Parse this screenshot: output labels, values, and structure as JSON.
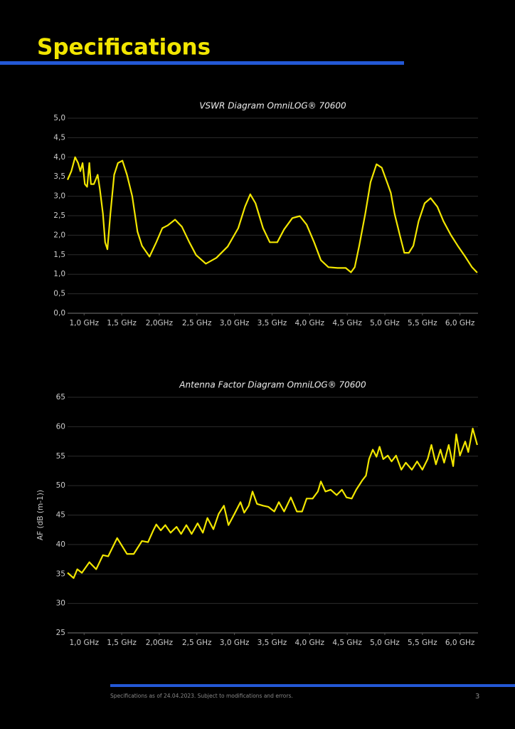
{
  "page": {
    "title": "Specifications",
    "footer": "Specifications as of 24.04.2023.  Subject to modifications and errors.",
    "page_number": "3"
  },
  "chart_data": [
    {
      "type": "line",
      "title": "VSWR Diagram OmniLOG® 70600",
      "color": "#f2e600",
      "grid": true,
      "xlim": [
        0.78,
        6.24
      ],
      "ylim": [
        0,
        5
      ],
      "xticks": [
        {
          "value": 1.0,
          "label": "1,0 GHz"
        },
        {
          "value": 1.5,
          "label": "1,5 GHz"
        },
        {
          "value": 2.0,
          "label": "2,0GHz"
        },
        {
          "value": 2.5,
          "label": "2,5 GHz"
        },
        {
          "value": 3.0,
          "label": "3,0 GHz"
        },
        {
          "value": 3.5,
          "label": "3,5 GHz"
        },
        {
          "value": 4.0,
          "label": "4,0 GHz"
        },
        {
          "value": 4.5,
          "label": "4,5 GHz"
        },
        {
          "value": 5.0,
          "label": "5,0 GHz"
        },
        {
          "value": 5.5,
          "label": "5,5 GHz"
        },
        {
          "value": 6.0,
          "label": "6,0 GHz"
        }
      ],
      "yticks": [
        {
          "value": 0,
          "label": "0,0"
        },
        {
          "value": 0.5,
          "label": "0,5"
        },
        {
          "value": 1,
          "label": "1,0"
        },
        {
          "value": 1.5,
          "label": "1,5"
        },
        {
          "value": 2,
          "label": "2,0"
        },
        {
          "value": 2.5,
          "label": "2,5"
        },
        {
          "value": 3,
          "label": "3,0"
        },
        {
          "value": 3.5,
          "label": "3,5"
        },
        {
          "value": 4,
          "label": "4,0"
        },
        {
          "value": 4.5,
          "label": "4,5"
        },
        {
          "value": 5,
          "label": "5,0"
        }
      ],
      "x": [
        0.78,
        0.83,
        0.88,
        0.92,
        0.95,
        0.98,
        1.01,
        1.04,
        1.07,
        1.09,
        1.13,
        1.18,
        1.21,
        1.25,
        1.28,
        1.31,
        1.35,
        1.4,
        1.45,
        1.51,
        1.57,
        1.64,
        1.71,
        1.77,
        1.87,
        1.96,
        2.04,
        2.11,
        2.21,
        2.3,
        2.4,
        2.49,
        2.62,
        2.76,
        2.91,
        3.05,
        3.14,
        3.21,
        3.28,
        3.38,
        3.47,
        3.57,
        3.66,
        3.77,
        3.87,
        3.96,
        4.06,
        4.15,
        4.25,
        4.37,
        4.48,
        4.55,
        4.6,
        4.66,
        4.74,
        4.81,
        4.89,
        4.96,
        5.03,
        5.08,
        5.13,
        5.2,
        5.26,
        5.32,
        5.38,
        5.45,
        5.53,
        5.61,
        5.7,
        5.78,
        5.88,
        5.97,
        6.07,
        6.16,
        6.23
      ],
      "values": [
        3.42,
        3.64,
        4.0,
        3.85,
        3.64,
        3.85,
        3.31,
        3.24,
        3.85,
        3.31,
        3.31,
        3.55,
        3.18,
        2.55,
        1.82,
        1.64,
        2.55,
        3.55,
        3.85,
        3.91,
        3.55,
        3.0,
        2.09,
        1.73,
        1.45,
        1.82,
        2.18,
        2.25,
        2.4,
        2.22,
        1.82,
        1.49,
        1.27,
        1.42,
        1.71,
        2.18,
        2.73,
        3.05,
        2.82,
        2.18,
        1.82,
        1.82,
        2.15,
        2.44,
        2.49,
        2.27,
        1.82,
        1.36,
        1.18,
        1.16,
        1.16,
        1.05,
        1.18,
        1.73,
        2.55,
        3.36,
        3.82,
        3.73,
        3.36,
        3.09,
        2.55,
        2.0,
        1.55,
        1.55,
        1.73,
        2.36,
        2.82,
        2.95,
        2.73,
        2.36,
        2.0,
        1.73,
        1.45,
        1.18,
        1.04
      ]
    },
    {
      "type": "line",
      "title": "Antenna Factor Diagram OmniLOG® 70600",
      "ylabel": "AF (dB (m-1))",
      "color": "#f2e600",
      "grid": true,
      "xlim": [
        0.78,
        6.24
      ],
      "ylim": [
        25,
        65
      ],
      "xticks": [
        {
          "value": 1.0,
          "label": "1,0 GHz"
        },
        {
          "value": 1.5,
          "label": "1,5 GHz"
        },
        {
          "value": 2.0,
          "label": "2,0GHz"
        },
        {
          "value": 2.5,
          "label": "2,5 GHz"
        },
        {
          "value": 3.0,
          "label": "3,0 GHz"
        },
        {
          "value": 3.5,
          "label": "3,5 GHz"
        },
        {
          "value": 4.0,
          "label": "4,0 GHz"
        },
        {
          "value": 4.5,
          "label": "4,5 GHz"
        },
        {
          "value": 5.0,
          "label": "5,0 GHz"
        },
        {
          "value": 5.5,
          "label": "5,5 GHz"
        },
        {
          "value": 6.0,
          "label": "6,0 GHz"
        }
      ],
      "yticks": [
        25,
        30,
        35,
        40,
        45,
        50,
        55,
        60,
        65
      ],
      "x": [
        0.78,
        0.86,
        0.91,
        0.97,
        1.07,
        1.16,
        1.25,
        1.32,
        1.44,
        1.57,
        1.66,
        1.77,
        1.85,
        1.92,
        1.96,
        2.02,
        2.08,
        2.15,
        2.23,
        2.29,
        2.36,
        2.43,
        2.51,
        2.58,
        2.64,
        2.72,
        2.79,
        2.86,
        2.92,
        3.0,
        3.08,
        3.13,
        3.19,
        3.24,
        3.3,
        3.38,
        3.45,
        3.53,
        3.59,
        3.66,
        3.75,
        3.83,
        3.9,
        3.96,
        4.04,
        4.11,
        4.15,
        4.21,
        4.28,
        4.36,
        4.43,
        4.49,
        4.56,
        4.62,
        4.7,
        4.75,
        4.79,
        4.84,
        4.89,
        4.93,
        4.98,
        5.04,
        5.09,
        5.15,
        5.22,
        5.28,
        5.36,
        5.43,
        5.5,
        5.57,
        5.62,
        5.68,
        5.74,
        5.79,
        5.85,
        5.91,
        5.95,
        6.0,
        6.07,
        6.11,
        6.17,
        6.23
      ],
      "values": [
        35.2,
        34.3,
        35.8,
        35.2,
        37.0,
        35.8,
        38.2,
        38.0,
        41.1,
        38.4,
        38.4,
        40.6,
        40.4,
        42.4,
        43.4,
        42.4,
        43.3,
        42.0,
        43.0,
        41.8,
        43.3,
        41.8,
        43.6,
        42.0,
        44.5,
        42.6,
        45.2,
        46.6,
        43.3,
        45.2,
        47.2,
        45.4,
        46.6,
        49.0,
        46.9,
        46.6,
        46.4,
        45.6,
        47.2,
        45.6,
        48.0,
        45.6,
        45.6,
        47.8,
        47.8,
        49.0,
        50.7,
        49.0,
        49.3,
        48.4,
        49.3,
        48.0,
        47.8,
        49.3,
        50.9,
        51.7,
        54.5,
        56.1,
        54.9,
        56.6,
        54.5,
        55.1,
        54.1,
        55.1,
        52.7,
        53.9,
        52.7,
        54.1,
        52.7,
        54.5,
        56.9,
        53.6,
        56.1,
        53.9,
        56.9,
        53.3,
        58.7,
        55.1,
        57.5,
        55.7,
        59.7,
        56.9
      ]
    }
  ]
}
